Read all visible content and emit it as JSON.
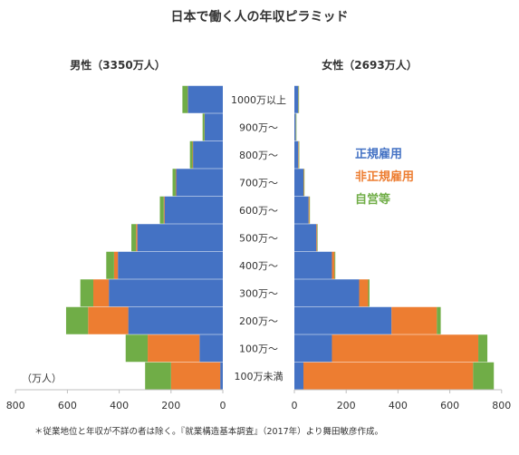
{
  "chart_data": {
    "type": "bar",
    "title": "日本で働く人の年収ピラミッド",
    "note": "＊従業地位と年収が不詳の者は除く。『就業構造基本調査』（2017年）より舞田敏彦作成。",
    "unit_label": "（万人）",
    "categories": [
      "100万未満",
      "100万～",
      "200万～",
      "300万～",
      "400万～",
      "500万～",
      "600万～",
      "700万～",
      "800万～",
      "900万～",
      "1000万以上"
    ],
    "colors": {
      "正規雇用": "#4472c4",
      "非正規雇用": "#ed7d31",
      "自営等": "#70ad47"
    },
    "legend": {
      "placement": "right of women panel",
      "items": [
        "正規雇用",
        "非正規雇用",
        "自営等"
      ]
    },
    "panels": [
      {
        "name": "男性（3350万人）",
        "direction": "left",
        "xlim": [
          0,
          800
        ],
        "xticks": [
          "800",
          "600",
          "400",
          "200",
          "0"
        ],
        "series": [
          {
            "name": "正規雇用",
            "values": [
              10,
              90,
              365,
              440,
              405,
              330,
              225,
              180,
              115,
              70,
              135
            ]
          },
          {
            "name": "非正規雇用",
            "values": [
              190,
              200,
              155,
              60,
              15,
              5,
              3,
              2,
              2,
              1,
              1
            ]
          },
          {
            "name": "自営等",
            "values": [
              100,
              85,
              85,
              50,
              30,
              18,
              15,
              12,
              10,
              7,
              20
            ]
          }
        ]
      },
      {
        "name": "女性（2693万人）",
        "direction": "right",
        "xlim": [
          0,
          800
        ],
        "xticks": [
          "0",
          "200",
          "400",
          "600",
          "800"
        ],
        "series": [
          {
            "name": "正規雇用",
            "values": [
              35,
              145,
              375,
              250,
              145,
              85,
              55,
              35,
              15,
              5,
              15
            ]
          },
          {
            "name": "非正規雇用",
            "values": [
              655,
              565,
              175,
              35,
              10,
              3,
              3,
              2,
              2,
              1,
              1
            ]
          },
          {
            "name": "自営等",
            "values": [
              80,
              35,
              15,
              5,
              3,
              2,
              2,
              2,
              2,
              2,
              2
            ]
          }
        ]
      }
    ]
  }
}
